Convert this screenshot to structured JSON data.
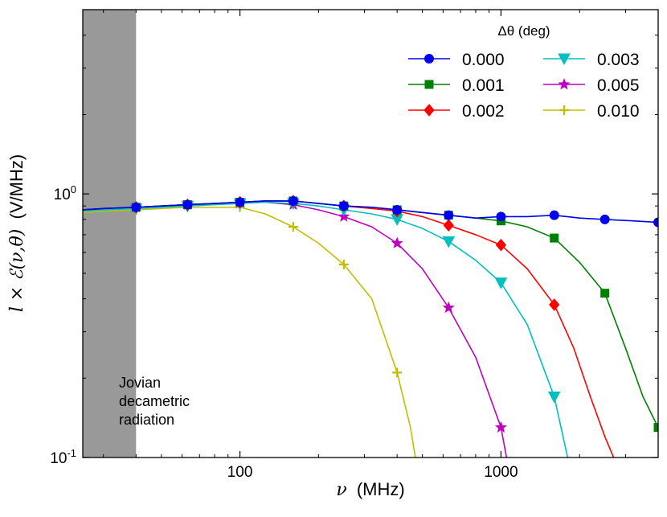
{
  "chart_data": {
    "type": "line",
    "title": "",
    "xlabel_symbol": "ν",
    "xlabel_unit": "(MHz)",
    "ylabel_symbol": "l × ℰ(ν,θ)",
    "ylabel_unit": "(V/MHz)",
    "xscale": "log",
    "yscale": "log",
    "xlim": [
      25,
      4000
    ],
    "ylim": [
      0.1,
      5
    ],
    "x_ticks": [
      {
        "value": 100,
        "label": "100"
      },
      {
        "value": 1000,
        "label": "1000"
      }
    ],
    "y_ticks": [
      {
        "value": 0.1,
        "base": "10",
        "exp": "-1"
      },
      {
        "value": 1,
        "base": "10",
        "exp": "0"
      }
    ],
    "shaded_region": {
      "x": [
        25,
        40
      ],
      "color": "#999999",
      "label": [
        "Jovian",
        "decametric",
        "radiation"
      ]
    },
    "legend": {
      "title": "Δθ (deg)",
      "placement": "top-right",
      "ncol": 2
    },
    "series": [
      {
        "name": "0.000",
        "color": "#0000ee",
        "marker": "circle",
        "x": [
          25,
          30,
          40,
          50,
          63,
          80,
          100,
          125,
          160,
          200,
          250,
          320,
          400,
          500,
          630,
          800,
          1000,
          1260,
          1600,
          2000,
          2500,
          3200,
          4000
        ],
        "y": [
          0.87,
          0.88,
          0.89,
          0.9,
          0.91,
          0.92,
          0.93,
          0.94,
          0.94,
          0.92,
          0.9,
          0.89,
          0.87,
          0.85,
          0.83,
          0.81,
          0.82,
          0.82,
          0.83,
          0.81,
          0.8,
          0.79,
          0.78
        ],
        "markers_x": [
          40,
          63,
          100,
          160,
          250,
          400,
          630,
          1000,
          1600,
          2500,
          4000
        ]
      },
      {
        "name": "0.001",
        "color": "#008000",
        "marker": "square",
        "x": [
          25,
          30,
          40,
          50,
          63,
          80,
          100,
          125,
          160,
          200,
          250,
          320,
          400,
          500,
          630,
          800,
          1000,
          1260,
          1600,
          2000,
          2500,
          3000,
          3500,
          4000
        ],
        "y": [
          0.87,
          0.88,
          0.89,
          0.9,
          0.91,
          0.92,
          0.93,
          0.94,
          0.94,
          0.92,
          0.9,
          0.89,
          0.87,
          0.85,
          0.83,
          0.81,
          0.79,
          0.75,
          0.68,
          0.55,
          0.42,
          0.26,
          0.17,
          0.13
        ],
        "markers_x": [
          40,
          63,
          100,
          160,
          250,
          400,
          630,
          1000,
          1600,
          2500,
          4000
        ]
      },
      {
        "name": "0.002",
        "color": "#ff0000",
        "marker": "diamond",
        "x": [
          25,
          30,
          40,
          50,
          63,
          80,
          100,
          125,
          160,
          200,
          250,
          320,
          400,
          500,
          630,
          800,
          1000,
          1260,
          1600,
          1900,
          2200,
          2500,
          2700
        ],
        "y": [
          0.87,
          0.88,
          0.89,
          0.9,
          0.91,
          0.92,
          0.93,
          0.94,
          0.94,
          0.92,
          0.9,
          0.88,
          0.86,
          0.82,
          0.76,
          0.7,
          0.64,
          0.52,
          0.38,
          0.26,
          0.17,
          0.12,
          0.1
        ],
        "markers_x": [
          40,
          63,
          100,
          160,
          250,
          400,
          630,
          1000,
          1600
        ]
      },
      {
        "name": "0.003",
        "color": "#00bfbf",
        "marker": "triangle_down",
        "x": [
          25,
          30,
          40,
          50,
          63,
          80,
          100,
          125,
          160,
          200,
          250,
          320,
          400,
          500,
          630,
          800,
          1000,
          1260,
          1600,
          1800
        ],
        "y": [
          0.86,
          0.87,
          0.88,
          0.89,
          0.9,
          0.91,
          0.92,
          0.93,
          0.92,
          0.9,
          0.87,
          0.84,
          0.8,
          0.74,
          0.66,
          0.56,
          0.46,
          0.32,
          0.17,
          0.1
        ],
        "markers_x": [
          40,
          63,
          100,
          160,
          250,
          400,
          630,
          1000,
          1600
        ]
      },
      {
        "name": "0.005",
        "color": "#bf00bf",
        "marker": "star",
        "x": [
          25,
          30,
          40,
          50,
          63,
          80,
          100,
          125,
          160,
          200,
          250,
          320,
          400,
          500,
          630,
          800,
          1000,
          1050
        ],
        "y": [
          0.87,
          0.88,
          0.89,
          0.9,
          0.91,
          0.92,
          0.93,
          0.93,
          0.91,
          0.87,
          0.82,
          0.75,
          0.65,
          0.52,
          0.37,
          0.24,
          0.13,
          0.1
        ],
        "markers_x": [
          40,
          63,
          100,
          160,
          250,
          400,
          630,
          1000
        ]
      },
      {
        "name": "0.010",
        "color": "#bfbf00",
        "marker": "plus",
        "x": [
          25,
          30,
          40,
          50,
          63,
          80,
          100,
          125,
          160,
          200,
          250,
          320,
          400,
          450,
          470
        ],
        "y": [
          0.85,
          0.86,
          0.87,
          0.88,
          0.89,
          0.89,
          0.89,
          0.84,
          0.75,
          0.65,
          0.54,
          0.4,
          0.21,
          0.13,
          0.1
        ],
        "markers_x": [
          40,
          63,
          100,
          160,
          250,
          400
        ]
      }
    ]
  }
}
